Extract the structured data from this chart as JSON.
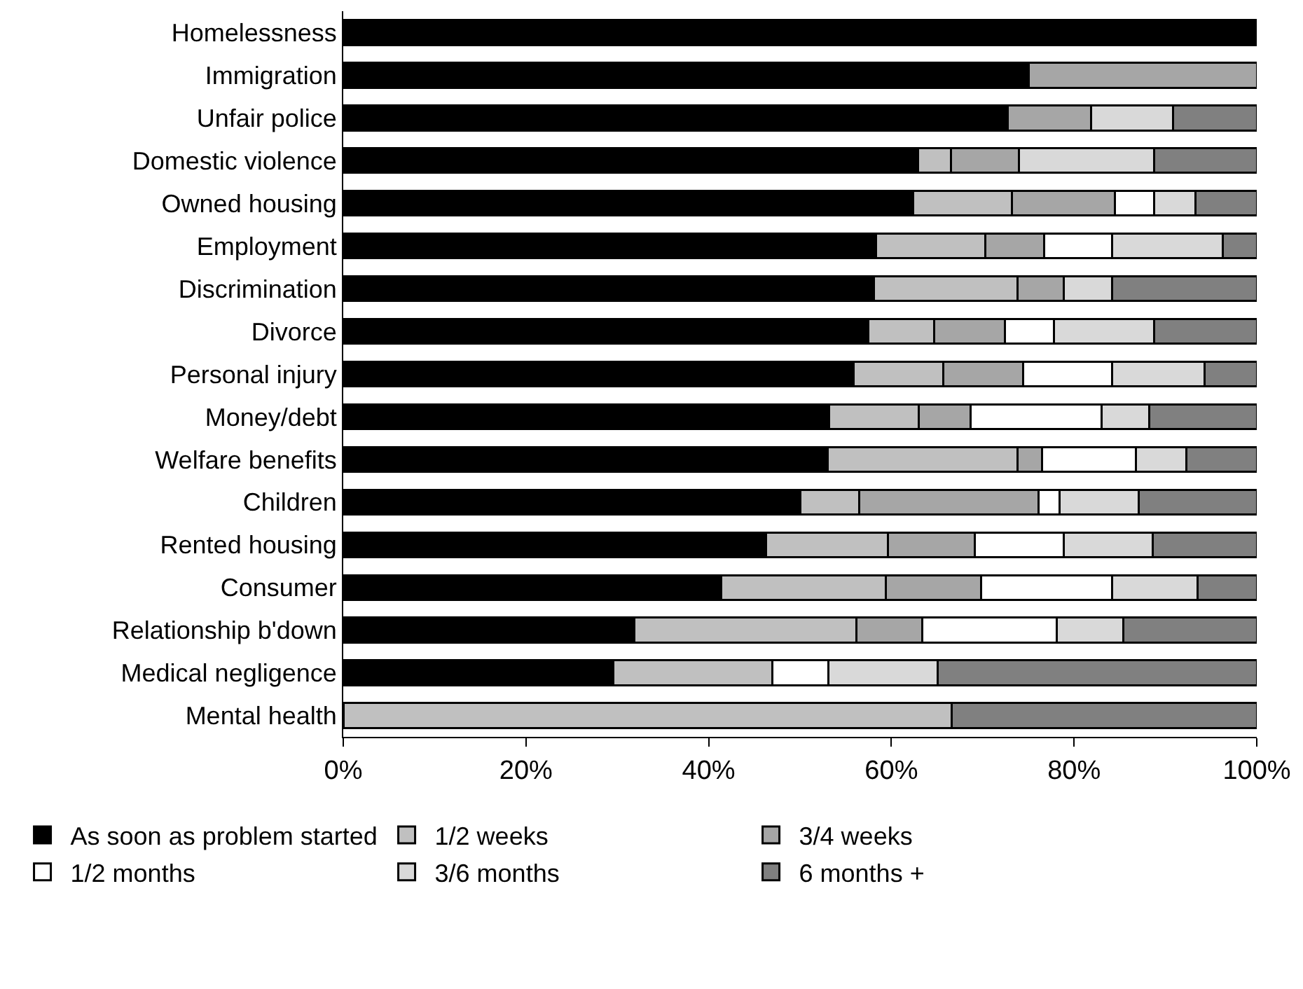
{
  "chart_data": {
    "type": "bar",
    "orientation": "horizontal",
    "stacked": true,
    "categories": [
      "Homelessness",
      "Immigration",
      "Unfair police",
      "Domestic violence",
      "Owned housing",
      "Employment",
      "Discrimination",
      "Divorce",
      "Personal injury",
      "Money/debt",
      "Welfare benefits",
      "Children",
      "Rented housing",
      "Consumer",
      "Relationship b'down",
      "Medical negligence",
      "Mental health"
    ],
    "series": [
      {
        "name": "As soon as problem started",
        "color": "#000000",
        "values": [
          100,
          75,
          72.7,
          62.9,
          62.4,
          58.3,
          58.1,
          57.5,
          55.9,
          53.2,
          53.0,
          50.0,
          46.3,
          41.4,
          31.9,
          29.6,
          0
        ]
      },
      {
        "name": "1/2 weeks",
        "color": "#c0c0c0",
        "values": [
          0,
          0,
          0,
          3.6,
          10.8,
          12.0,
          15.7,
          7.2,
          9.8,
          9.8,
          20.8,
          6.5,
          13.3,
          18.0,
          24.3,
          17.4,
          66.6
        ]
      },
      {
        "name": "3/4 weeks",
        "color": "#a6a6a6",
        "values": [
          0,
          25,
          9.2,
          7.5,
          11.3,
          6.4,
          5.1,
          7.7,
          8.7,
          5.7,
          2.7,
          19.6,
          9.5,
          10.4,
          7.2,
          0,
          0
        ]
      },
      {
        "name": "1/2 months",
        "color": "#ffffff",
        "values": [
          0,
          0,
          0,
          0,
          4.3,
          7.5,
          0,
          5.4,
          9.8,
          14.3,
          10.3,
          2.3,
          9.8,
          14.4,
          14.7,
          6.1,
          0
        ]
      },
      {
        "name": "3/6 months",
        "color": "#d9d9d9",
        "values": [
          0,
          0,
          8.9,
          14.8,
          4.5,
          12.1,
          5.3,
          11.0,
          10.1,
          5.2,
          5.5,
          8.7,
          9.7,
          9.3,
          7.3,
          12.0,
          0
        ]
      },
      {
        "name": "6 months +",
        "color": "#808080",
        "values": [
          0,
          0,
          9.2,
          11.2,
          6.7,
          3.7,
          15.8,
          11.2,
          5.7,
          11.8,
          7.7,
          12.9,
          11.4,
          6.5,
          14.6,
          34.9,
          33.4
        ]
      }
    ],
    "xlim": [
      0,
      100
    ],
    "xticks": [
      {
        "value": 0,
        "label": "0%"
      },
      {
        "value": 20,
        "label": "20%"
      },
      {
        "value": 40,
        "label": "40%"
      },
      {
        "value": 60,
        "label": "60%"
      },
      {
        "value": 80,
        "label": "80%"
      },
      {
        "value": 100,
        "label": "100%"
      }
    ],
    "grid": false,
    "legend": "bottom"
  }
}
